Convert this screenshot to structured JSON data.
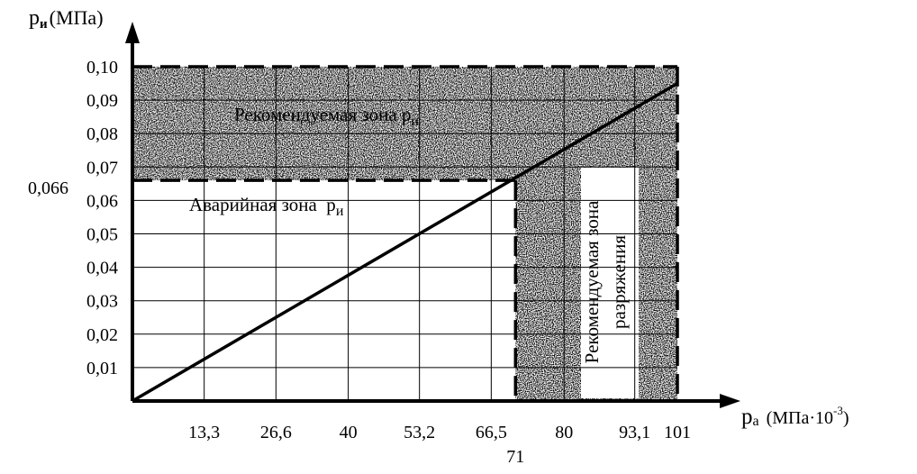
{
  "chart_data": {
    "type": "line",
    "x_axis": {
      "title": "p",
      "title_subscript": "a",
      "unit": "(МПа·10",
      "unit_exponent": "-3",
      "unit_close": ")",
      "range": [
        0,
        101
      ],
      "ticks": [
        {
          "value": 13.3,
          "label": "13,3"
        },
        {
          "value": 26.6,
          "label": "26,6"
        },
        {
          "value": 40,
          "label": "40"
        },
        {
          "value": 53.2,
          "label": "53,2"
        },
        {
          "value": 66.5,
          "label": "66,5"
        },
        {
          "value": 80,
          "label": "80"
        },
        {
          "value": 93.1,
          "label": "93,1"
        },
        {
          "value": 101,
          "label": "101"
        }
      ],
      "highlight_tick": {
        "value": 71,
        "label": "71"
      }
    },
    "y_axis": {
      "title": "p",
      "title_subscript": "и",
      "unit": "(МПа)",
      "range": [
        0,
        0.1
      ],
      "ticks": [
        {
          "value": 0.01,
          "label": "0,01"
        },
        {
          "value": 0.02,
          "label": "0,02"
        },
        {
          "value": 0.03,
          "label": "0,03"
        },
        {
          "value": 0.04,
          "label": "0,04"
        },
        {
          "value": 0.05,
          "label": "0,05"
        },
        {
          "value": 0.06,
          "label": "0,06"
        },
        {
          "value": 0.07,
          "label": "0,07"
        },
        {
          "value": 0.08,
          "label": "0,08"
        },
        {
          "value": 0.09,
          "label": "0,09"
        },
        {
          "value": 0.1,
          "label": "0,10"
        }
      ],
      "highlight_tick": {
        "value": 0.066,
        "label": "0,066"
      }
    },
    "series": [
      {
        "x": [
          0,
          101
        ],
        "y": [
          0,
          0.095
        ]
      }
    ],
    "thresholds": {
      "x": 71,
      "y": 0.066
    },
    "zones": [
      {
        "label": "Рекомендуемая зона p",
        "label_subscript": "и",
        "x": [
          0,
          101
        ],
        "y": [
          0.066,
          0.1
        ]
      },
      {
        "label": "Аварийная зона  p",
        "label_subscript": "и",
        "x": [
          0,
          71
        ],
        "y": [
          0,
          0.066
        ]
      },
      {
        "label_line1": "Рекомендуемая зона",
        "label_line2": "разряжения",
        "x": [
          71,
          101
        ],
        "y": [
          0,
          0.066
        ]
      }
    ],
    "grid": true,
    "legend": "none"
  }
}
